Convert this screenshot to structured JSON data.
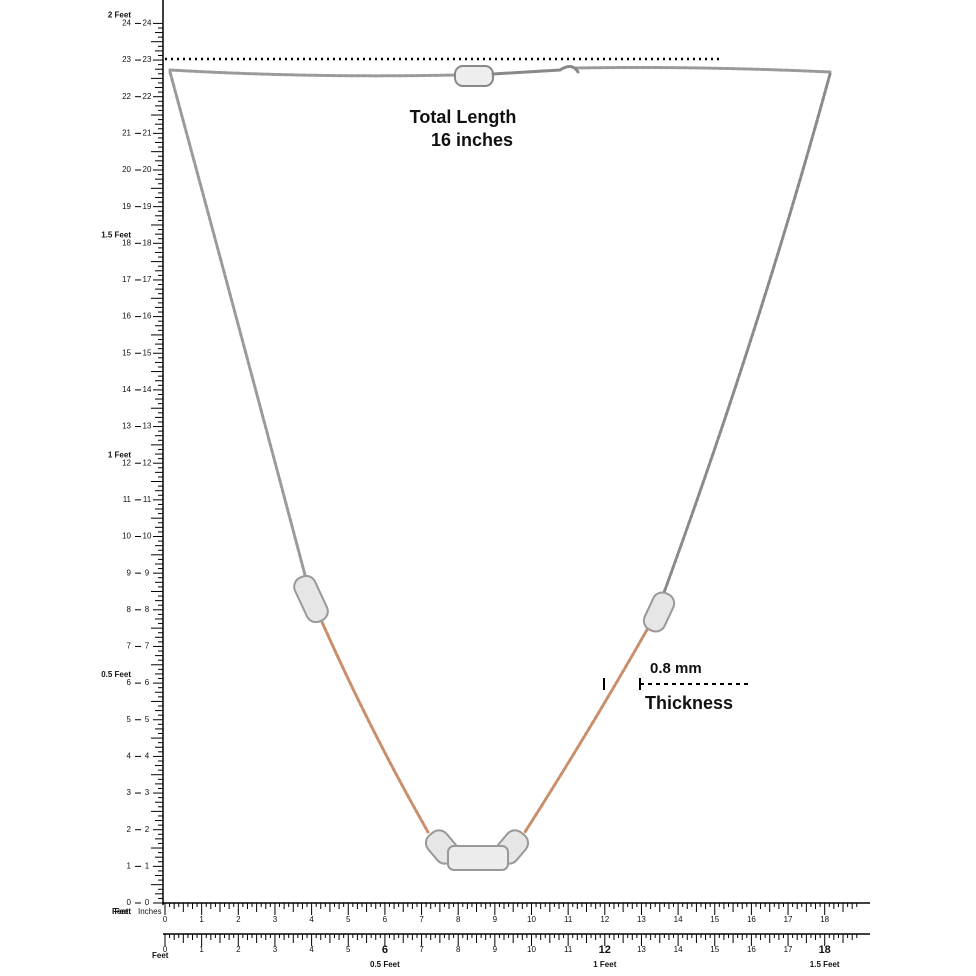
{
  "annotations": {
    "total_length_title": "Total  Length",
    "total_length_value": "16 inches",
    "thickness_value": "0.8 mm",
    "thickness_label": "Thickness"
  },
  "left_ruler": {
    "outer_labels": [
      0,
      1,
      2,
      3,
      4,
      5,
      6,
      7,
      8,
      9,
      10,
      11,
      12,
      13,
      14,
      15,
      16,
      17,
      18,
      19,
      20,
      21,
      22,
      23,
      24
    ],
    "inner_labels": [
      0,
      1,
      2,
      3,
      4,
      5,
      6,
      7,
      8,
      9,
      10,
      11,
      12,
      13,
      14,
      15,
      16,
      17,
      18,
      19,
      20,
      21,
      22,
      23,
      24
    ],
    "feet_labels": [
      {
        "value": 6,
        "label": "0.5 Feet"
      },
      {
        "value": 12,
        "label": "1 Feet"
      },
      {
        "value": 18,
        "label": "1.5 Feet"
      },
      {
        "value": 24,
        "label": "2 Feet"
      }
    ],
    "bottom_label": "Feet"
  },
  "bottom_ruler": {
    "feet_label": "Feet",
    "inches_label": "Inches",
    "labels": [
      0,
      1,
      2,
      3,
      4,
      5,
      6,
      7,
      8,
      9,
      10,
      11,
      12,
      13,
      14,
      15,
      16,
      17,
      18
    ]
  },
  "second_ruler": {
    "feet_label": "Feet",
    "labels": [
      0,
      1,
      2,
      3,
      4,
      5,
      6,
      7,
      8,
      9,
      10,
      11,
      12,
      13,
      14,
      15,
      16,
      17,
      18
    ],
    "feet_labels": [
      {
        "value": 6,
        "label": "0.5 Feet"
      },
      {
        "value": 12,
        "label": "1 Feet"
      },
      {
        "value": 18,
        "label": "1.5 Feet"
      }
    ]
  }
}
